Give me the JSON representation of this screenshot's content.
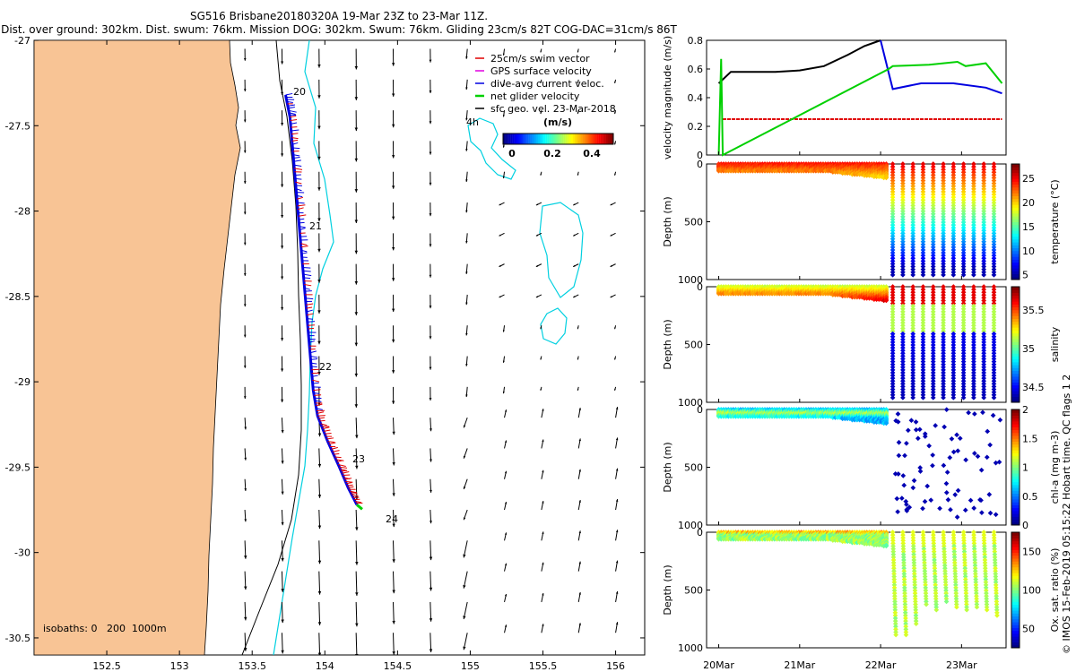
{
  "title": {
    "line1": "SG516 Brisbane20180320A 19-Mar 23Z to 23-Mar 11Z.",
    "line2": "Dist. over ground: 302km. Dist. swum: 76km. Mission DOG: 302km. Swum: 76km. Gliding 23cm/s 82T COG-DAC=31cm/s 86T"
  },
  "map": {
    "isobaths_label": "isobaths: 0   200  1000m",
    "legend": [
      {
        "label": "25cm/s swim vector",
        "color": "#e00000"
      },
      {
        "label": "GPS surface velocity",
        "color": "#e000e0"
      },
      {
        "label": "dive-avg current veloc.",
        "color": "#0000e0"
      },
      {
        "label": "net glider velocity",
        "color": "#00d000"
      },
      {
        "label": "sfc geo. vel. 23-Mar-2018",
        "color": "#000000"
      }
    ],
    "colorbar": {
      "unit": "(m/s)",
      "ticks": [
        "0",
        "0.2",
        "0.4"
      ],
      "range": [
        0,
        0.5
      ]
    },
    "day_labels": [
      "20",
      "21",
      "22",
      "23",
      "24"
    ],
    "contour_label": "4h"
  },
  "chart_data": [
    {
      "type": "map",
      "id": "glider-track-map",
      "title": "SG516 Brisbane20180320A 19-Mar 23Z to 23-Mar 11Z.",
      "xlim": [
        152.0,
        156.2
      ],
      "ylim": [
        -30.6,
        -27.0
      ],
      "xticks": [
        "152.5",
        "153",
        "153.5",
        "154",
        "154.5",
        "155",
        "155.5",
        "156"
      ],
      "yticks": [
        "-27",
        "-27.5",
        "-28",
        "-28.5",
        "-29",
        "-29.5",
        "-30",
        "-30.5"
      ],
      "track": [
        [
          153.73,
          -27.32
        ],
        [
          153.76,
          -27.45
        ],
        [
          153.78,
          -27.65
        ],
        [
          153.8,
          -27.85
        ],
        [
          153.82,
          -28.05
        ],
        [
          153.84,
          -28.25
        ],
        [
          153.86,
          -28.45
        ],
        [
          153.88,
          -28.65
        ],
        [
          153.9,
          -28.85
        ],
        [
          153.92,
          -29.05
        ],
        [
          153.95,
          -29.2
        ],
        [
          154.02,
          -29.35
        ],
        [
          154.1,
          -29.5
        ],
        [
          154.16,
          -29.62
        ],
        [
          154.22,
          -29.72
        ]
      ],
      "day_markers": [
        {
          "label": "20",
          "lon": 153.79,
          "lat": -27.32
        },
        {
          "label": "21",
          "lon": 153.85,
          "lat": -28.1
        },
        {
          "label": "22",
          "lon": 153.91,
          "lat": -28.95
        },
        {
          "label": "23",
          "lon": 154.22,
          "lat": -29.55
        },
        {
          "label": "24",
          "lon": 154.3,
          "lat": -29.85
        }
      ]
    },
    {
      "type": "line",
      "id": "velocity",
      "ylabel": "velocity magnitude (m/s)",
      "ylim": [
        0,
        0.8
      ],
      "yticks": [
        "0",
        "0.2",
        "0.4",
        "0.6",
        "0.8"
      ],
      "xlim": [
        19.85,
        23.55
      ],
      "series": [
        {
          "name": "black",
          "color": "#000000",
          "x": [
            20.0,
            20.15,
            20.4,
            20.7,
            21.0,
            21.3,
            21.6,
            21.8,
            22.0
          ],
          "y": [
            0.5,
            0.58,
            0.58,
            0.58,
            0.59,
            0.62,
            0.7,
            0.76,
            0.8
          ]
        },
        {
          "name": "blue",
          "color": "#0000e0",
          "x": [
            22.0,
            22.15,
            22.5,
            22.9,
            23.3,
            23.5
          ],
          "y": [
            0.8,
            0.46,
            0.5,
            0.5,
            0.47,
            0.43
          ]
        },
        {
          "name": "red",
          "color": "#e00000",
          "x": [
            20.05,
            23.5
          ],
          "y": [
            0.25,
            0.25
          ]
        },
        {
          "name": "green",
          "color": "#00d000",
          "x": [
            20.0,
            20.03,
            20.05,
            22.1,
            22.15,
            22.6,
            22.95,
            23.05,
            23.3,
            23.5
          ],
          "y": [
            0.0,
            0.67,
            0.0,
            0.6,
            0.62,
            0.63,
            0.65,
            0.62,
            0.64,
            0.5
          ]
        }
      ]
    },
    {
      "type": "heatmap",
      "id": "temperature",
      "ylabel": "Depth (m)",
      "yticks": [
        "0",
        "500",
        "1000"
      ],
      "ylim": [
        1000,
        0
      ],
      "colorbar_label": "temperature (°C)",
      "cticks": [
        "5",
        "10",
        "15",
        "20",
        "25"
      ],
      "crange": [
        4,
        28
      ]
    },
    {
      "type": "heatmap",
      "id": "salinity",
      "ylabel": "Depth (m)",
      "yticks": [
        "0",
        "500",
        "1000"
      ],
      "ylim": [
        1000,
        0
      ],
      "colorbar_label": "salinity",
      "cticks": [
        "34.5",
        "35",
        "35.5"
      ],
      "crange": [
        34.3,
        35.8
      ]
    },
    {
      "type": "heatmap",
      "id": "chla",
      "ylabel": "Depth (m)",
      "yticks": [
        "0",
        "500",
        "1000"
      ],
      "ylim": [
        1000,
        0
      ],
      "colorbar_label": "chl-a (mg m-3)",
      "cticks": [
        "0",
        "0.5",
        "1",
        "1.5",
        "2"
      ],
      "crange": [
        0,
        2
      ]
    },
    {
      "type": "heatmap",
      "id": "oxygen",
      "ylabel": "Depth (m)",
      "yticks": [
        "0",
        "500",
        "1000"
      ],
      "ylim": [
        1000,
        0
      ],
      "colorbar_label": "Ox. sat. ratio (%)",
      "cticks": [
        "50",
        "100",
        "150"
      ],
      "crange": [
        25,
        175
      ]
    }
  ],
  "time_axis": {
    "ticks": [
      "20Mar",
      "21Mar",
      "22Mar",
      "23Mar"
    ]
  },
  "footer": {
    "side_text": "© IMOS 15-Feb-2019 05:15:22 Hobart time. QC flags 1  2"
  }
}
